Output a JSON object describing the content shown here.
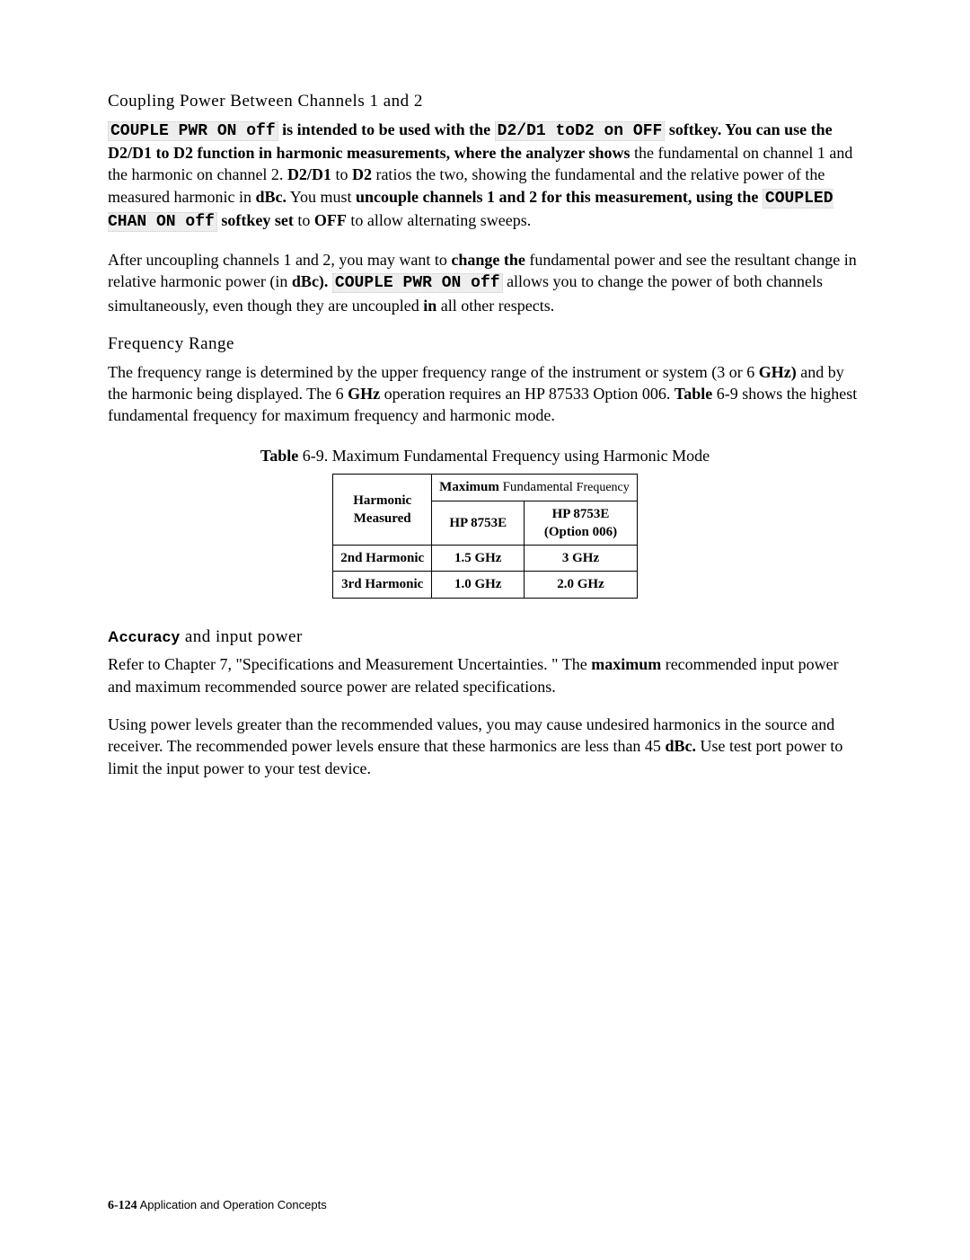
{
  "section1": {
    "heading": "Coupling Power Between Channels 1 and 2",
    "p1_pre": "",
    "hl1": "COUPLE PWR ON off",
    "p1_mid1": " is intended to be used with the ",
    "hl2": "D2/D1 toD2 on OFF",
    "p1_mid2": " softkey. You can use the D2/D1 to D2 function in harmonic measurements, where the analyzer shows",
    "p1_line2": " the fundamental on channel 1 and the harmonic on channel 2. ",
    "bold1": "D2/D1",
    "p1_mid3": " to ",
    "bold2": "D2",
    "p1_mid4": " ratios the two, showing the fundamental and the relative power of the measured harmonic in ",
    "bold3": "dBc.",
    "p1_mid5": " You must ",
    "bold4": "uncouple channels 1 and 2 for this measurement, using the ",
    "hl3": "COUPLED CHAN ON off",
    "p1_mid6": " softkey set",
    "p1_line3a": " to ",
    "bold5": "OFF",
    "p1_line3b": " to allow alternating sweeps.",
    "p2_a": "After uncoupling channels 1 and 2, you may want to ",
    "p2_b_bold": "change the ",
    "p2_c": "fundamental power and see the resultant change in relative harmonic power (in ",
    "p2_d_bold": "dBc). ",
    "hl4": "COUPLE PWR ON off",
    "p2_e": " allows you to change the power of both channels simultaneously, even though they are uncoupled ",
    "p2_f_bold": "in",
    "p2_g": " all other respects."
  },
  "section2": {
    "heading": "Frequency Range",
    "p1_a": "The frequency range is determined by the upper frequency range of the instrument or system (3 or 6 ",
    "p1_b_bold": "GHz)",
    "p1_c": " and by the harmonic being displayed. The 6 ",
    "p1_d_bold": "GHz",
    "p1_e": " operation requires an HP 87533 Option 006. ",
    "p1_f_bold": "Table",
    "p1_g": " 6-9 shows the highest fundamental frequency for maximum frequency and harmonic mode."
  },
  "table": {
    "caption_bold": "Table",
    "caption_rest": " 6-9. Maximum Fundamental Frequency using Harmonic Mode",
    "col1_header_l1": "Harmonic",
    "col1_header_l2": "Measured",
    "col23_header_bold": "Maximum",
    "col23_header_rest": " Fundamental ",
    "col23_header_last": "Frequency",
    "col2_sub": "HP 8753E",
    "col3_sub_l1": "HP 8753E",
    "col3_sub_l2": "(Option 006)",
    "rows": [
      {
        "c1": "2nd Harmonic",
        "c2": "1.5 GHz",
        "c3": "3 GHz"
      },
      {
        "c1": "3rd Harmonic",
        "c2": "1.0 GHz",
        "c3": "2.0 GHz"
      }
    ]
  },
  "section3": {
    "heading_bold": "Accuracy",
    "heading_rest": " and input power",
    "p1_a": "Refer to Chapter 7, \"Specifications and Measurement Uncertainties. \" The ",
    "p1_b_bold": "maximum",
    "p1_c": " recommended input power and maximum recommended source power are related specifications.",
    "p2_a": "Using power levels greater than the recommended values, you may cause undesired harmonics in the source and receiver. The recommended power levels ensure that these harmonics are less than 45 ",
    "p2_b_bold": "dBc.",
    "p2_c": " Use test port power to limit the input power to your test device."
  },
  "footer": {
    "page": "6-124",
    "label": "  Application and Operation Concepts"
  }
}
